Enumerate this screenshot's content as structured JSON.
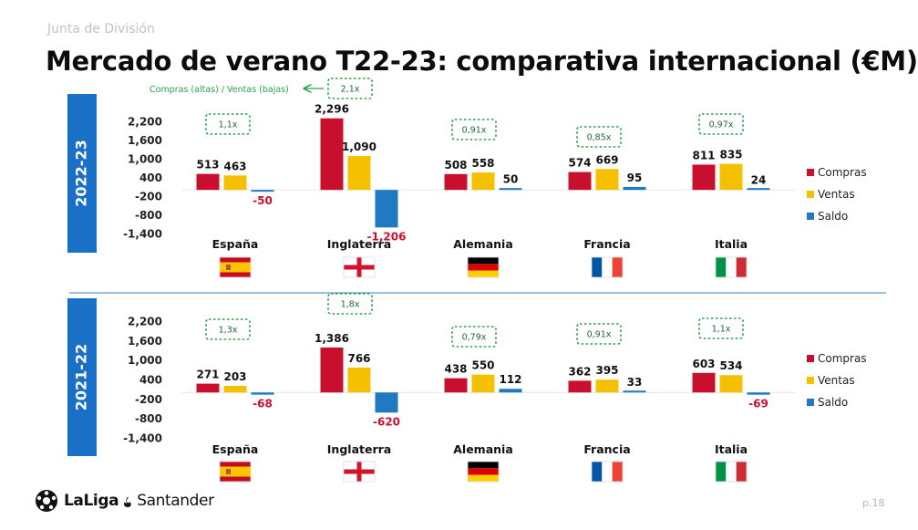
{
  "header": {
    "top_label": "Junta de División",
    "title": "Mercado de verano T22-23: comparativa internacional (€M)"
  },
  "annotation": {
    "ratio_note": "Compras (altas) / Ventas (bajas)"
  },
  "footer": {
    "brand_main": "LaLiga",
    "brand_sub": "Santander",
    "page": "p.18"
  },
  "colors": {
    "Compras": "#c8102e",
    "Ventas": "#f5c000",
    "Saldo": "#1f7ac2",
    "season_band": "#1a6fc6",
    "ratio_box": "#2aa44a",
    "negative_label": "#c8102e",
    "divider": "#5b9ac7"
  },
  "chart_data": [
    {
      "type": "bar",
      "season": "2022-23",
      "categories": [
        "España",
        "Inglaterra",
        "Alemania",
        "Francia",
        "Italia"
      ],
      "flags": [
        "flag-spain-icon",
        "flag-england-icon",
        "flag-germany-icon",
        "flag-france-icon",
        "flag-italy-icon"
      ],
      "series": [
        {
          "name": "Compras",
          "values": [
            513,
            2296,
            508,
            574,
            811
          ]
        },
        {
          "name": "Ventas",
          "values": [
            463,
            1090,
            558,
            669,
            835
          ]
        },
        {
          "name": "Saldo",
          "values": [
            -50,
            -1206,
            50,
            95,
            24
          ]
        }
      ],
      "value_labels": [
        [
          "513",
          "463",
          "-50"
        ],
        [
          "2,296",
          "1,090",
          "-1,206"
        ],
        [
          "508",
          "558",
          "50"
        ],
        [
          "574",
          "669",
          "95"
        ],
        [
          "811",
          "835",
          "24"
        ]
      ],
      "ratios": [
        "1,1x",
        "2,1x",
        "0,91x",
        "0,85x",
        "0,97x"
      ],
      "y_ticks": [
        "2,200",
        "1,600",
        "1,000",
        "400",
        "-200",
        "-800",
        "-1,400"
      ],
      "ylim": [
        -1400,
        2200
      ],
      "legend": [
        "Compras",
        "Ventas",
        "Saldo"
      ],
      "legend_position": "right"
    },
    {
      "type": "bar",
      "season": "2021-22",
      "categories": [
        "España",
        "Inglaterra",
        "Alemania",
        "Francia",
        "Italia"
      ],
      "flags": [
        "flag-spain-icon",
        "flag-england-icon",
        "flag-germany-icon",
        "flag-france-icon",
        "flag-italy-icon"
      ],
      "series": [
        {
          "name": "Compras",
          "values": [
            271,
            1386,
            438,
            362,
            603
          ]
        },
        {
          "name": "Ventas",
          "values": [
            203,
            766,
            550,
            395,
            534
          ]
        },
        {
          "name": "Saldo",
          "values": [
            -68,
            -620,
            112,
            33,
            -69
          ]
        }
      ],
      "value_labels": [
        [
          "271",
          "203",
          "-68"
        ],
        [
          "1,386",
          "766",
          "-620"
        ],
        [
          "438",
          "550",
          "112"
        ],
        [
          "362",
          "395",
          "33"
        ],
        [
          "603",
          "534",
          "-69"
        ]
      ],
      "ratios": [
        "1,3x",
        "1,8x",
        "0,79x",
        "0,91x",
        "1,1x"
      ],
      "y_ticks": [
        "2,200",
        "1,600",
        "1,000",
        "400",
        "-200",
        "-800",
        "-1,400"
      ],
      "ylim": [
        -1400,
        2200
      ],
      "legend": [
        "Compras",
        "Ventas",
        "Saldo"
      ],
      "legend_position": "right"
    }
  ]
}
